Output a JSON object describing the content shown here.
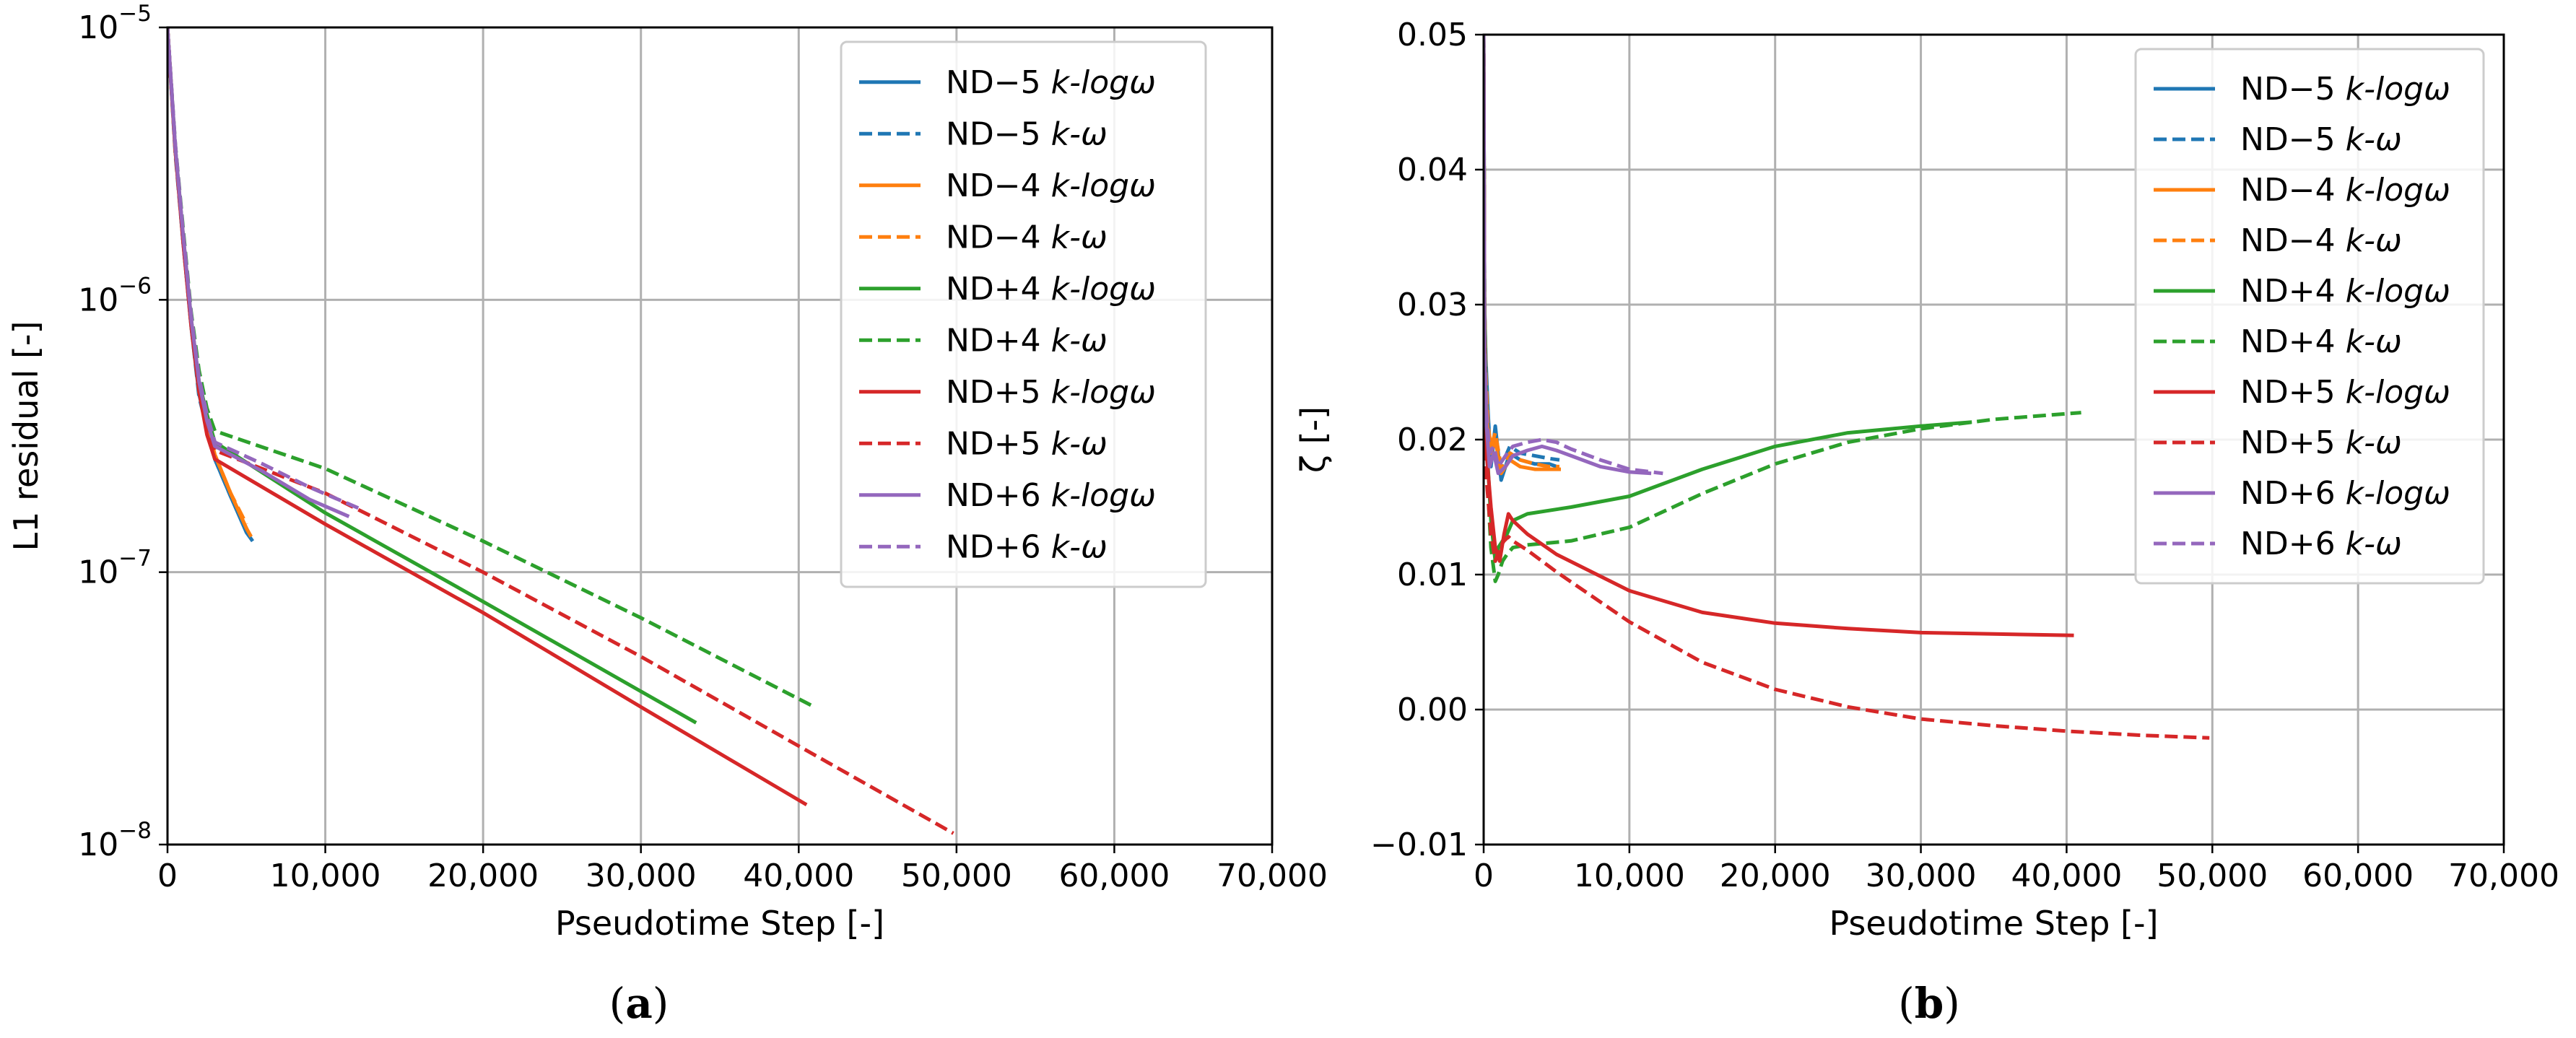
{
  "colors": {
    "blue": "#1f77b4",
    "orange": "#ff7f0e",
    "green": "#2ca02c",
    "red": "#d62728",
    "purple": "#9467bd",
    "grid": "#b0b0b0"
  },
  "chart_data": [
    {
      "type": "line",
      "panel": "a",
      "caption_letter": "a",
      "xlabel": "Pseudotime Step [-]",
      "ylabel": "L1 residual [-]",
      "yscale": "log",
      "xlim": [
        0,
        70000
      ],
      "ylim": [
        1e-08,
        1e-05
      ],
      "grid": true,
      "legend_loc": "top-right",
      "x_ticks": [
        {
          "v": 0,
          "label": "0"
        },
        {
          "v": 10000,
          "label": "10,000"
        },
        {
          "v": 20000,
          "label": "20,000"
        },
        {
          "v": 30000,
          "label": "30,000"
        },
        {
          "v": 40000,
          "label": "40,000"
        },
        {
          "v": 50000,
          "label": "50,000"
        },
        {
          "v": 60000,
          "label": "60,000"
        },
        {
          "v": 70000,
          "label": "70,000"
        }
      ],
      "y_ticks": [
        {
          "v": 1e-08,
          "base": "10",
          "exp": "−8"
        },
        {
          "v": 1e-07,
          "base": "10",
          "exp": "−7"
        },
        {
          "v": 1e-06,
          "base": "10",
          "exp": "−6"
        },
        {
          "v": 1e-05,
          "base": "10",
          "exp": "−5"
        }
      ],
      "series": [
        {
          "name": "ND−5 k-logω",
          "prefix": "ND−5 ",
          "model": "k-logω",
          "color": "blue",
          "dash": "solid",
          "x": [
            0,
            500,
            1000,
            1500,
            2000,
            3000,
            4000,
            5000,
            5400
          ],
          "y": [
            1e-05,
            3.5e-06,
            1.6e-06,
            8e-07,
            4.5e-07,
            2.6e-07,
            1.9e-07,
            1.4e-07,
            1.3e-07
          ]
        },
        {
          "name": "ND−5 k-ω",
          "prefix": "ND−5 ",
          "model": "k-ω",
          "color": "blue",
          "dash": "dashed",
          "x": [
            0,
            500,
            1000,
            1500,
            2000,
            3000,
            4000,
            5000,
            5200
          ],
          "y": [
            1e-05,
            3.4e-06,
            1.6e-06,
            8e-07,
            4.4e-07,
            2.6e-07,
            1.9e-07,
            1.45e-07,
            1.35e-07
          ]
        },
        {
          "name": "ND−4 k-logω",
          "prefix": "ND−4 ",
          "model": "k-logω",
          "color": "orange",
          "dash": "solid",
          "x": [
            0,
            500,
            1000,
            1500,
            2000,
            3000,
            4000,
            5000,
            5300
          ],
          "y": [
            1e-05,
            3.5e-06,
            1.65e-06,
            8.2e-07,
            4.6e-07,
            2.7e-07,
            1.95e-07,
            1.45e-07,
            1.35e-07
          ]
        },
        {
          "name": "ND−4 k-ω",
          "prefix": "ND−4 ",
          "model": "k-ω",
          "color": "orange",
          "dash": "dashed",
          "x": [
            0,
            500,
            1000,
            1500,
            2000,
            3000,
            4000,
            5000
          ],
          "y": [
            1e-05,
            3.5e-06,
            1.65e-06,
            8.2e-07,
            4.6e-07,
            2.7e-07,
            1.95e-07,
            1.5e-07
          ]
        },
        {
          "name": "ND+4 k-logω",
          "prefix": "ND+4 ",
          "model": "k-logω",
          "color": "green",
          "dash": "solid",
          "x": [
            0,
            500,
            1000,
            1500,
            2000,
            2500,
            3000,
            10000,
            20000,
            33500
          ],
          "y": [
            1e-05,
            3.6e-06,
            1.7e-06,
            8.5e-07,
            5e-07,
            3.8e-07,
            3e-07,
            1.65e-07,
            7.8e-08,
            2.8e-08
          ]
        },
        {
          "name": "ND+4 k-ω",
          "prefix": "ND+4 ",
          "model": "k-ω",
          "color": "green",
          "dash": "dashed",
          "x": [
            0,
            500,
            1000,
            1500,
            2000,
            2500,
            3000,
            10000,
            20000,
            30000,
            41000
          ],
          "y": [
            1e-05,
            3.7e-06,
            1.8e-06,
            9e-07,
            5.5e-07,
            4e-07,
            3.3e-07,
            2.4e-07,
            1.3e-07,
            6.8e-08,
            3.2e-08
          ]
        },
        {
          "name": "ND+5 k-logω",
          "prefix": "ND+5 ",
          "model": "k-logω",
          "color": "red",
          "dash": "solid",
          "x": [
            0,
            500,
            1000,
            1500,
            2000,
            2500,
            3000,
            10000,
            20000,
            30000,
            40500
          ],
          "y": [
            1e-05,
            3.5e-06,
            1.6e-06,
            8e-07,
            4.6e-07,
            3.2e-07,
            2.6e-07,
            1.5e-07,
            7.1e-08,
            3.2e-08,
            1.4e-08
          ]
        },
        {
          "name": "ND+5 k-ω",
          "prefix": "ND+5 ",
          "model": "k-ω",
          "color": "red",
          "dash": "dashed",
          "x": [
            0,
            500,
            1000,
            1500,
            2000,
            2500,
            3000,
            10000,
            20000,
            30000,
            40000,
            49800
          ],
          "y": [
            1e-05,
            3.6e-06,
            1.7e-06,
            8.5e-07,
            4.8e-07,
            3.4e-07,
            2.8e-07,
            1.95e-07,
            1e-07,
            4.9e-08,
            2.3e-08,
            1.1e-08
          ]
        },
        {
          "name": "ND+6 k-logω",
          "prefix": "ND+6 ",
          "model": "k-logω",
          "color": "purple",
          "dash": "solid",
          "x": [
            0,
            500,
            1000,
            1500,
            2000,
            2500,
            3000,
            6000,
            9000,
            11500
          ],
          "y": [
            1e-05,
            3.6e-06,
            1.7e-06,
            8.5e-07,
            5e-07,
            3.6e-07,
            2.9e-07,
            2.35e-07,
            1.85e-07,
            1.6e-07
          ]
        },
        {
          "name": "ND+6 k-ω",
          "prefix": "ND+6 ",
          "model": "k-ω",
          "color": "purple",
          "dash": "dashed",
          "x": [
            0,
            500,
            1000,
            1500,
            2000,
            2500,
            3000,
            6000,
            9000,
            12300
          ],
          "y": [
            1e-05,
            3.7e-06,
            1.75e-06,
            8.8e-07,
            5.2e-07,
            3.8e-07,
            3e-07,
            2.5e-07,
            2.05e-07,
            1.7e-07
          ]
        }
      ]
    },
    {
      "type": "line",
      "panel": "b",
      "caption_letter": "b",
      "xlabel": "Pseudotime Step [-]",
      "ylabel": "ζ [-]",
      "yscale": "linear",
      "xlim": [
        0,
        70000
      ],
      "ylim": [
        -0.01,
        0.05
      ],
      "grid": true,
      "legend_loc": "top-right",
      "x_ticks": [
        {
          "v": 0,
          "label": "0"
        },
        {
          "v": 10000,
          "label": "10,000"
        },
        {
          "v": 20000,
          "label": "20,000"
        },
        {
          "v": 30000,
          "label": "30,000"
        },
        {
          "v": 40000,
          "label": "40,000"
        },
        {
          "v": 50000,
          "label": "50,000"
        },
        {
          "v": 60000,
          "label": "60,000"
        },
        {
          "v": 70000,
          "label": "70,000"
        }
      ],
      "y_ticks": [
        {
          "v": -0.01,
          "label": "−0.01"
        },
        {
          "v": 0.0,
          "label": "0.00"
        },
        {
          "v": 0.01,
          "label": "0.01"
        },
        {
          "v": 0.02,
          "label": "0.02"
        },
        {
          "v": 0.03,
          "label": "0.03"
        },
        {
          "v": 0.04,
          "label": "0.04"
        },
        {
          "v": 0.05,
          "label": "0.05"
        }
      ],
      "series": [
        {
          "name": "ND−5 k-logω",
          "prefix": "ND−5 ",
          "model": "k-logω",
          "color": "blue",
          "dash": "solid",
          "x": [
            0,
            60,
            150,
            300,
            500,
            800,
            1200,
            1800,
            2500,
            3500,
            4500,
            5000
          ],
          "y": [
            0.05,
            0.03,
            0.026,
            0.022,
            0.018,
            0.021,
            0.017,
            0.019,
            0.0185,
            0.0182,
            0.0182,
            0.018
          ]
        },
        {
          "name": "ND−5 k-ω",
          "prefix": "ND−5 ",
          "model": "k-ω",
          "color": "blue",
          "dash": "dashed",
          "x": [
            0,
            60,
            150,
            300,
            500,
            800,
            1200,
            1800,
            2500,
            3500,
            4500,
            5200
          ],
          "y": [
            0.05,
            0.03,
            0.025,
            0.021,
            0.019,
            0.02,
            0.018,
            0.0195,
            0.019,
            0.0188,
            0.0186,
            0.0185
          ]
        },
        {
          "name": "ND−4 k-logω",
          "prefix": "ND−4 ",
          "model": "k-logω",
          "color": "orange",
          "dash": "solid",
          "x": [
            0,
            60,
            150,
            300,
            500,
            800,
            1200,
            1800,
            2500,
            3500,
            4500,
            5300
          ],
          "y": [
            0.05,
            0.03,
            0.024,
            0.02,
            0.019,
            0.02,
            0.0175,
            0.0185,
            0.018,
            0.0178,
            0.0178,
            0.0178
          ]
        },
        {
          "name": "ND−4 k-ω",
          "prefix": "ND−4 ",
          "model": "k-ω",
          "color": "orange",
          "dash": "dashed",
          "x": [
            0,
            60,
            150,
            300,
            500,
            800,
            1200,
            1800,
            2500,
            3500,
            4500,
            5200
          ],
          "y": [
            0.05,
            0.03,
            0.025,
            0.021,
            0.0195,
            0.0205,
            0.018,
            0.019,
            0.0185,
            0.0182,
            0.018,
            0.018
          ]
        },
        {
          "name": "ND+4 k-logω",
          "prefix": "ND+4 ",
          "model": "k-logω",
          "color": "green",
          "dash": "solid",
          "x": [
            0,
            60,
            200,
            500,
            800,
            1000,
            1300,
            1600,
            2000,
            3000,
            6000,
            10000,
            15000,
            20000,
            25000,
            30000,
            33500
          ],
          "y": [
            0.05,
            0.03,
            0.02,
            0.014,
            0.011,
            0.012,
            0.0125,
            0.013,
            0.014,
            0.0145,
            0.015,
            0.0158,
            0.0178,
            0.0195,
            0.0205,
            0.021,
            0.0213
          ]
        },
        {
          "name": "ND+4 k-ω",
          "prefix": "ND+4 ",
          "model": "k-ω",
          "color": "green",
          "dash": "dashed",
          "x": [
            0,
            60,
            200,
            500,
            800,
            1000,
            1300,
            1600,
            2000,
            3000,
            6000,
            10000,
            15000,
            20000,
            25000,
            30000,
            35000,
            41000
          ],
          "y": [
            0.05,
            0.03,
            0.018,
            0.012,
            0.0095,
            0.01,
            0.011,
            0.0115,
            0.012,
            0.0122,
            0.0125,
            0.0135,
            0.016,
            0.0182,
            0.0198,
            0.0208,
            0.0215,
            0.022
          ]
        },
        {
          "name": "ND+5 k-logω",
          "prefix": "ND+5 ",
          "model": "k-logω",
          "color": "red",
          "dash": "solid",
          "x": [
            0,
            60,
            200,
            500,
            800,
            1100,
            1400,
            1700,
            2000,
            3000,
            5000,
            10000,
            15000,
            20000,
            25000,
            30000,
            35000,
            40500
          ],
          "y": [
            0.05,
            0.028,
            0.019,
            0.015,
            0.012,
            0.011,
            0.013,
            0.0145,
            0.014,
            0.013,
            0.0115,
            0.0088,
            0.0072,
            0.0064,
            0.006,
            0.0057,
            0.0056,
            0.0055
          ]
        },
        {
          "name": "ND+5 k-ω",
          "prefix": "ND+5 ",
          "model": "k-ω",
          "color": "red",
          "dash": "dashed",
          "x": [
            0,
            60,
            200,
            500,
            800,
            1100,
            1400,
            1700,
            2000,
            3000,
            5000,
            10000,
            15000,
            20000,
            25000,
            30000,
            35000,
            40000,
            45000,
            49800
          ],
          "y": [
            0.05,
            0.028,
            0.017,
            0.013,
            0.011,
            0.012,
            0.0125,
            0.0128,
            0.0125,
            0.0118,
            0.0102,
            0.0065,
            0.0035,
            0.0015,
            0.0002,
            -0.0007,
            -0.0012,
            -0.0016,
            -0.0019,
            -0.0021
          ]
        },
        {
          "name": "ND+6 k-logω",
          "prefix": "ND+6 ",
          "model": "k-logω",
          "color": "purple",
          "dash": "solid",
          "x": [
            0,
            60,
            200,
            400,
            700,
            1000,
            1500,
            2000,
            3000,
            4000,
            5000,
            6000,
            8000,
            10000,
            11500
          ],
          "y": [
            0.05,
            0.026,
            0.021,
            0.018,
            0.019,
            0.0175,
            0.018,
            0.0188,
            0.0192,
            0.0195,
            0.0192,
            0.0188,
            0.018,
            0.0176,
            0.0175
          ]
        },
        {
          "name": "ND+6 k-ω",
          "prefix": "ND+6 ",
          "model": "k-ω",
          "color": "purple",
          "dash": "dashed",
          "x": [
            0,
            60,
            200,
            400,
            700,
            1000,
            1500,
            2000,
            3000,
            4000,
            5000,
            6000,
            8000,
            10000,
            12300
          ],
          "y": [
            0.05,
            0.027,
            0.022,
            0.019,
            0.0195,
            0.018,
            0.0188,
            0.0195,
            0.0198,
            0.02,
            0.0198,
            0.0193,
            0.0185,
            0.0178,
            0.0175
          ]
        }
      ]
    }
  ]
}
